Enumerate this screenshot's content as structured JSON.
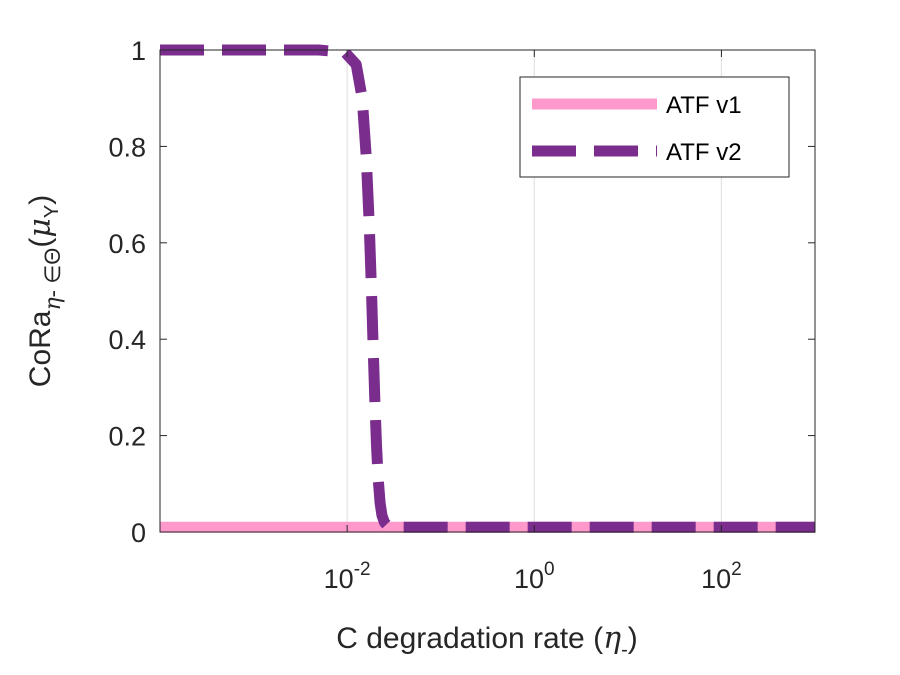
{
  "chart_data": {
    "type": "line",
    "xscale": "log",
    "xlim": [
      0.0001,
      1000
    ],
    "ylim": [
      0,
      1
    ],
    "grid": "x-major",
    "legend_position": "top-right",
    "xlabel": {
      "prefix": "C degradation rate (",
      "symbol": "η",
      "sub": "-",
      "suffix": ")"
    },
    "ylabel": {
      "base": "CoRa",
      "sub_symbol": "η",
      "sub_rest": "- ∈Θ",
      "arg_open": "(",
      "arg_symbol": "μ",
      "arg_sub": "Y",
      "arg_close": ")"
    },
    "xticks": [
      {
        "value": 0.01,
        "base": "10",
        "exp": "-2"
      },
      {
        "value": 1,
        "base": "10",
        "exp": "0"
      },
      {
        "value": 100,
        "base": "10",
        "exp": "2"
      }
    ],
    "yticks": [
      {
        "value": 0,
        "label": "0"
      },
      {
        "value": 0.2,
        "label": "0.2"
      },
      {
        "value": 0.4,
        "label": "0.4"
      },
      {
        "value": 0.6,
        "label": "0.6"
      },
      {
        "value": 0.8,
        "label": "0.8"
      },
      {
        "value": 1,
        "label": "1"
      }
    ],
    "series": [
      {
        "name": "ATF v1",
        "color": "#FF99CC",
        "dash": "solid",
        "x": [
          0.0001,
          0.001,
          0.01,
          0.1,
          1,
          10,
          100,
          1000
        ],
        "y": [
          0.01,
          0.01,
          0.01,
          0.01,
          0.01,
          0.01,
          0.01,
          0.01
        ]
      },
      {
        "name": "ATF v2",
        "color": "#7B2D8E",
        "dash": "dashed",
        "x": [
          0.0001,
          0.001,
          0.005,
          0.0095,
          0.0125,
          0.0145,
          0.016,
          0.0172,
          0.0182,
          0.019,
          0.0198,
          0.0206,
          0.0215,
          0.0225,
          0.0235,
          0.025,
          0.027,
          0.03,
          0.04,
          0.1,
          1,
          10,
          100,
          1000
        ],
        "y": [
          1,
          1,
          1,
          0.995,
          0.97,
          0.9,
          0.78,
          0.64,
          0.5,
          0.38,
          0.27,
          0.18,
          0.11,
          0.06,
          0.035,
          0.02,
          0.013,
          0.01,
          0.01,
          0.01,
          0.01,
          0.01,
          0.01,
          0.01
        ]
      }
    ]
  }
}
